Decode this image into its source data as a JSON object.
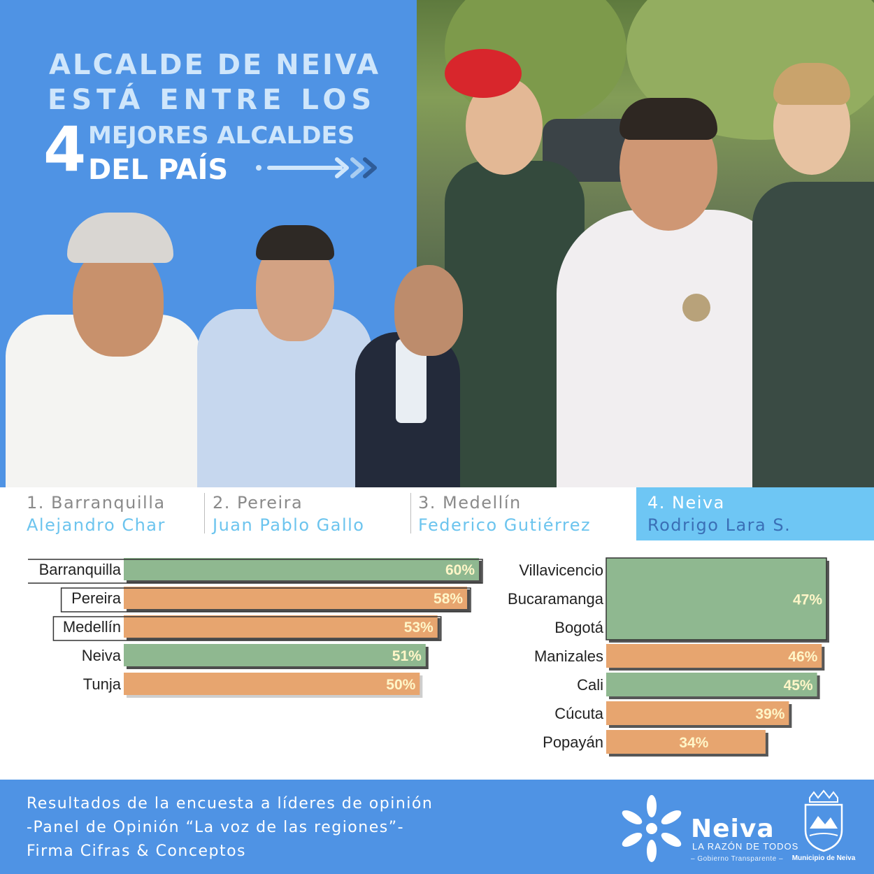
{
  "headline": {
    "line1": "ALCALDE DE NEIVA",
    "line2": "ESTÁ ENTRE LOS",
    "big_number": "4",
    "line3": "MEJORES ALCALDES",
    "line4": "DEL PAÍS"
  },
  "rankings": [
    {
      "city": "1. Barranquilla",
      "name": "Alejandro Char"
    },
    {
      "city": "2. Pereira",
      "name": "Juan Pablo Gallo"
    },
    {
      "city": "3. Medellín",
      "name": "Federico Gutiérrez"
    },
    {
      "city": "4. Neiva",
      "name": "Rodrigo Lara S."
    }
  ],
  "chart_data": [
    {
      "type": "bar",
      "orientation": "horizontal",
      "categories": [
        "Barranquilla",
        "Pereira",
        "Medellín",
        "Neiva",
        "Tunja"
      ],
      "values": [
        60,
        58,
        53,
        51,
        50
      ],
      "value_labels": [
        "60%",
        "58%",
        "53%",
        "51%",
        "50%"
      ],
      "bar_colors": [
        "#8fb890",
        "#e7a56f",
        "#e7a56f",
        "#8fb890",
        "#e7a56f"
      ],
      "boxed_categories": [
        "Barranquilla",
        "Pereira",
        "Medellín"
      ],
      "xlim": [
        0,
        60
      ]
    },
    {
      "type": "bar",
      "orientation": "horizontal",
      "categories": [
        "Villavicencio",
        "Bucaramanga",
        "Bogotá",
        "Manizales",
        "Cali",
        "Cúcuta",
        "Popayán"
      ],
      "groups": [
        {
          "categories": [
            "Villavicencio",
            "Bucaramanga",
            "Bogotá"
          ],
          "value": 47,
          "label": "47%",
          "color": "#8fb890"
        },
        {
          "categories": [
            "Manizales"
          ],
          "value": 46,
          "label": "46%",
          "color": "#e7a56f"
        },
        {
          "categories": [
            "Cali"
          ],
          "value": 45,
          "label": "45%",
          "color": "#8fb890"
        },
        {
          "categories": [
            "Cúcuta"
          ],
          "value": 39,
          "label": "39%",
          "color": "#e7a56f"
        },
        {
          "categories": [
            "Popayán"
          ],
          "value": 34,
          "label": "34%",
          "color": "#e7a56f"
        }
      ],
      "xlim": [
        0,
        47
      ]
    }
  ],
  "footer": {
    "line1": "Resultados de la encuesta a líderes de opinión",
    "line2": "-Panel de Opinión “La voz de las regiones”-",
    "line3": "Firma Cifras & Conceptos",
    "brand": "Neiva",
    "tagline": "LA RAZÓN DE TODOS",
    "subtag": "– Gobierno Transparente –",
    "crest_label": "Municipio de Neiva"
  },
  "colors": {
    "blue": "#4f93e4",
    "light_blue": "#6ec6f4",
    "green_bar": "#8fb890",
    "orange_bar": "#e7a56f",
    "value_text": "#fff6c8"
  },
  "icons": [
    "arrow-right-icon",
    "chevrons-right-icon",
    "neiva-flower-logo-icon",
    "municipal-crest-icon"
  ]
}
